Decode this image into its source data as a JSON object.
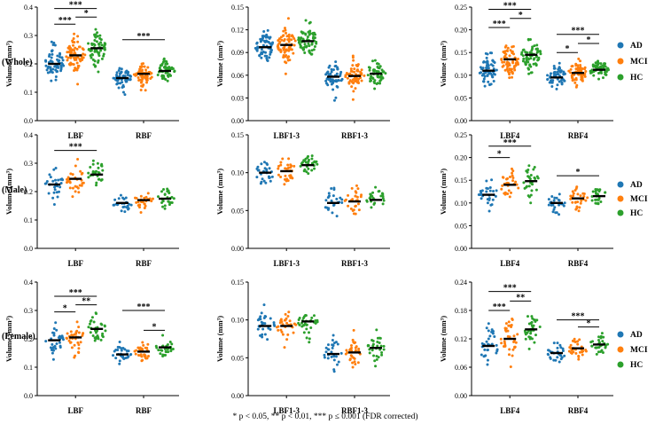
{
  "colors": {
    "AD": "#1f77b4",
    "MCI": "#ff7f0e",
    "HC": "#2ca02c"
  },
  "legend": [
    {
      "label": "AD",
      "color": "#1f77b4"
    },
    {
      "label": "MCI",
      "color": "#ff7f0e"
    },
    {
      "label": "HC",
      "color": "#2ca02c"
    }
  ],
  "row_labels": [
    "(Whole)",
    "(Male)",
    "(Female)"
  ],
  "footnote": "* p < 0.05,   ** p < 0.01,   *** p ≤ 0.001 (FDR corrected)",
  "chart_data": [
    {
      "type": "scatter",
      "row": 0,
      "col": 0,
      "ylabel": "Volume (mm³)",
      "ylim": [
        0,
        0.4
      ],
      "yticks": [
        "0.0",
        "0.1",
        "0.2",
        "0.3",
        "0.4"
      ],
      "categories": [
        "LBF",
        "RBF"
      ],
      "groups": [
        {
          "category": "LBF",
          "means": [
            0.2,
            0.23,
            0.255
          ],
          "spread": [
            0.04,
            0.04,
            0.04
          ],
          "n": [
            60,
            70,
            65
          ]
        },
        {
          "category": "RBF",
          "means": [
            0.15,
            0.165,
            0.175
          ],
          "spread": [
            0.025,
            0.025,
            0.022
          ],
          "n": [
            55,
            60,
            55
          ]
        }
      ],
      "significance": [
        {
          "category": "LBF",
          "from": "AD",
          "to": "HC",
          "y": 0.395,
          "label": "***"
        },
        {
          "category": "LBF",
          "from": "AD",
          "to": "MCI",
          "y": 0.34,
          "label": "***"
        },
        {
          "category": "LBF",
          "from": "MCI",
          "to": "HC",
          "y": 0.365,
          "label": "*"
        },
        {
          "category": "RBF",
          "from": "AD",
          "to": "HC",
          "y": 0.285,
          "label": "***"
        }
      ]
    },
    {
      "type": "scatter",
      "row": 0,
      "col": 1,
      "ylabel": "Volume (mm³)",
      "ylim": [
        0,
        0.15
      ],
      "yticks": [
        "0.00",
        "0.03",
        "0.06",
        "0.09",
        "0.12",
        "0.15"
      ],
      "categories": [
        "LBF1-3",
        "RBF1-3"
      ],
      "groups": [
        {
          "category": "LBF1-3",
          "means": [
            0.097,
            0.1,
            0.105
          ],
          "spread": [
            0.013,
            0.015,
            0.015
          ],
          "n": [
            60,
            70,
            65
          ]
        },
        {
          "category": "RBF1-3",
          "means": [
            0.058,
            0.059,
            0.062
          ],
          "spread": [
            0.012,
            0.013,
            0.012
          ],
          "n": [
            55,
            60,
            55
          ]
        }
      ],
      "significance": []
    },
    {
      "type": "scatter",
      "row": 0,
      "col": 2,
      "ylabel": "Volume (mm³)",
      "ylim": [
        0,
        0.25
      ],
      "yticks": [
        "0.00",
        "0.05",
        "0.10",
        "0.15",
        "0.20",
        "0.25"
      ],
      "categories": [
        "LBF4",
        "RBF4"
      ],
      "groups": [
        {
          "category": "LBF4",
          "means": [
            0.11,
            0.135,
            0.145
          ],
          "spread": [
            0.025,
            0.025,
            0.025
          ],
          "n": [
            60,
            70,
            65
          ]
        },
        {
          "category": "RBF4",
          "means": [
            0.095,
            0.105,
            0.112
          ],
          "spread": [
            0.018,
            0.018,
            0.016
          ],
          "n": [
            55,
            60,
            55
          ]
        }
      ],
      "significance": [
        {
          "category": "LBF4",
          "from": "AD",
          "to": "HC",
          "y": 0.245,
          "label": "***"
        },
        {
          "category": "LBF4",
          "from": "AD",
          "to": "MCI",
          "y": 0.205,
          "label": "***"
        },
        {
          "category": "LBF4",
          "from": "MCI",
          "to": "HC",
          "y": 0.225,
          "label": "*"
        },
        {
          "category": "RBF4",
          "from": "AD",
          "to": "HC",
          "y": 0.19,
          "label": "***"
        },
        {
          "category": "RBF4",
          "from": "AD",
          "to": "MCI",
          "y": 0.15,
          "label": "*"
        },
        {
          "category": "RBF4",
          "from": "MCI",
          "to": "HC",
          "y": 0.17,
          "label": "*"
        }
      ]
    },
    {
      "type": "scatter",
      "row": 1,
      "col": 0,
      "ylabel": "Volume (mm³)",
      "ylim": [
        0,
        0.4
      ],
      "yticks": [
        "0.0",
        "0.1",
        "0.2",
        "0.3",
        "0.4"
      ],
      "categories": [
        "LBF",
        "RBF"
      ],
      "groups": [
        {
          "category": "LBF",
          "means": [
            0.225,
            0.245,
            0.26
          ],
          "spread": [
            0.035,
            0.035,
            0.035
          ],
          "n": [
            28,
            30,
            30
          ]
        },
        {
          "category": "RBF",
          "means": [
            0.16,
            0.17,
            0.175
          ],
          "spread": [
            0.025,
            0.022,
            0.022
          ],
          "n": [
            25,
            28,
            27
          ]
        }
      ],
      "significance": [
        {
          "category": "LBF",
          "from": "AD",
          "to": "HC",
          "y": 0.345,
          "label": "***"
        }
      ]
    },
    {
      "type": "scatter",
      "row": 1,
      "col": 1,
      "ylabel": "Volume (mm³)",
      "ylim": [
        0,
        0.15
      ],
      "yticks": [
        "0.00",
        "0.05",
        "0.10",
        "0.15"
      ],
      "categories": [
        "LBF1-3",
        "RBF1-3"
      ],
      "groups": [
        {
          "category": "LBF1-3",
          "means": [
            0.1,
            0.102,
            0.11
          ],
          "spread": [
            0.012,
            0.013,
            0.012
          ],
          "n": [
            28,
            30,
            30
          ]
        },
        {
          "category": "RBF1-3",
          "means": [
            0.06,
            0.062,
            0.064
          ],
          "spread": [
            0.013,
            0.013,
            0.012
          ],
          "n": [
            25,
            28,
            27
          ]
        }
      ],
      "significance": []
    },
    {
      "type": "scatter",
      "row": 1,
      "col": 2,
      "ylabel": "Volume (mm³)",
      "ylim": [
        0,
        0.25
      ],
      "yticks": [
        "0.00",
        "0.05",
        "0.10",
        "0.15",
        "0.20",
        "0.25"
      ],
      "categories": [
        "LBF4",
        "RBF4"
      ],
      "groups": [
        {
          "category": "LBF4",
          "means": [
            0.118,
            0.14,
            0.148
          ],
          "spread": [
            0.022,
            0.025,
            0.022
          ],
          "n": [
            28,
            30,
            30
          ]
        },
        {
          "category": "RBF4",
          "means": [
            0.1,
            0.11,
            0.115
          ],
          "spread": [
            0.015,
            0.015,
            0.014
          ],
          "n": [
            25,
            28,
            27
          ]
        }
      ],
      "significance": [
        {
          "category": "LBF4",
          "from": "AD",
          "to": "HC",
          "y": 0.225,
          "label": "***"
        },
        {
          "category": "LBF4",
          "from": "AD",
          "to": "MCI",
          "y": 0.2,
          "label": "*"
        },
        {
          "category": "RBF4",
          "from": "AD",
          "to": "HC",
          "y": 0.16,
          "label": "*"
        }
      ]
    },
    {
      "type": "scatter",
      "row": 2,
      "col": 0,
      "ylabel": "Volume (mm³)",
      "ylim": [
        0,
        0.4
      ],
      "yticks": [
        "0.0",
        "0.1",
        "0.2",
        "0.3",
        "0.4"
      ],
      "categories": [
        "LBF",
        "RBF"
      ],
      "groups": [
        {
          "category": "LBF",
          "means": [
            0.195,
            0.205,
            0.235
          ],
          "spread": [
            0.035,
            0.035,
            0.035
          ],
          "n": [
            32,
            35,
            33
          ]
        },
        {
          "category": "RBF",
          "means": [
            0.145,
            0.155,
            0.17
          ],
          "spread": [
            0.022,
            0.022,
            0.022
          ],
          "n": [
            30,
            32,
            30
          ]
        }
      ],
      "significance": [
        {
          "category": "LBF",
          "from": "AD",
          "to": "HC",
          "y": 0.35,
          "label": "***"
        },
        {
          "category": "LBF",
          "from": "AD",
          "to": "MCI",
          "y": 0.295,
          "label": "*"
        },
        {
          "category": "LBF",
          "from": "MCI",
          "to": "HC",
          "y": 0.32,
          "label": "**"
        },
        {
          "category": "RBF",
          "from": "AD",
          "to": "HC",
          "y": 0.3,
          "label": "***"
        },
        {
          "category": "RBF",
          "from": "MCI",
          "to": "HC",
          "y": 0.23,
          "label": "*"
        }
      ]
    },
    {
      "type": "scatter",
      "row": 2,
      "col": 1,
      "ylabel": "Volume (mm³)",
      "ylim": [
        0,
        0.15
      ],
      "yticks": [
        "0.00",
        "0.05",
        "0.10",
        "0.15"
      ],
      "categories": [
        "LBF1-3",
        "RBF1-3"
      ],
      "groups": [
        {
          "category": "LBF1-3",
          "means": [
            0.092,
            0.092,
            0.098
          ],
          "spread": [
            0.013,
            0.013,
            0.013
          ],
          "n": [
            32,
            35,
            33
          ]
        },
        {
          "category": "RBF1-3",
          "means": [
            0.055,
            0.057,
            0.063
          ],
          "spread": [
            0.012,
            0.013,
            0.012
          ],
          "n": [
            30,
            32,
            30
          ]
        }
      ],
      "significance": []
    },
    {
      "type": "scatter",
      "row": 2,
      "col": 2,
      "ylabel": "Volume (mm³)",
      "ylim": [
        0,
        0.24
      ],
      "yticks": [
        "0.00",
        "0.06",
        "0.12",
        "0.18",
        "0.24"
      ],
      "categories": [
        "LBF4",
        "RBF4"
      ],
      "groups": [
        {
          "category": "LBF4",
          "means": [
            0.105,
            0.12,
            0.14
          ],
          "spread": [
            0.028,
            0.025,
            0.022
          ],
          "n": [
            32,
            35,
            33
          ]
        },
        {
          "category": "RBF4",
          "means": [
            0.09,
            0.1,
            0.108
          ],
          "spread": [
            0.015,
            0.015,
            0.014
          ],
          "n": [
            30,
            32,
            30
          ]
        }
      ],
      "significance": [
        {
          "category": "LBF4",
          "from": "AD",
          "to": "HC",
          "y": 0.22,
          "label": "***"
        },
        {
          "category": "LBF4",
          "from": "AD",
          "to": "MCI",
          "y": 0.18,
          "label": "***"
        },
        {
          "category": "LBF4",
          "from": "MCI",
          "to": "HC",
          "y": 0.2,
          "label": "**"
        },
        {
          "category": "RBF4",
          "from": "AD",
          "to": "HC",
          "y": 0.16,
          "label": "***"
        },
        {
          "category": "RBF4",
          "from": "MCI",
          "to": "HC",
          "y": 0.145,
          "label": "*"
        }
      ]
    }
  ]
}
